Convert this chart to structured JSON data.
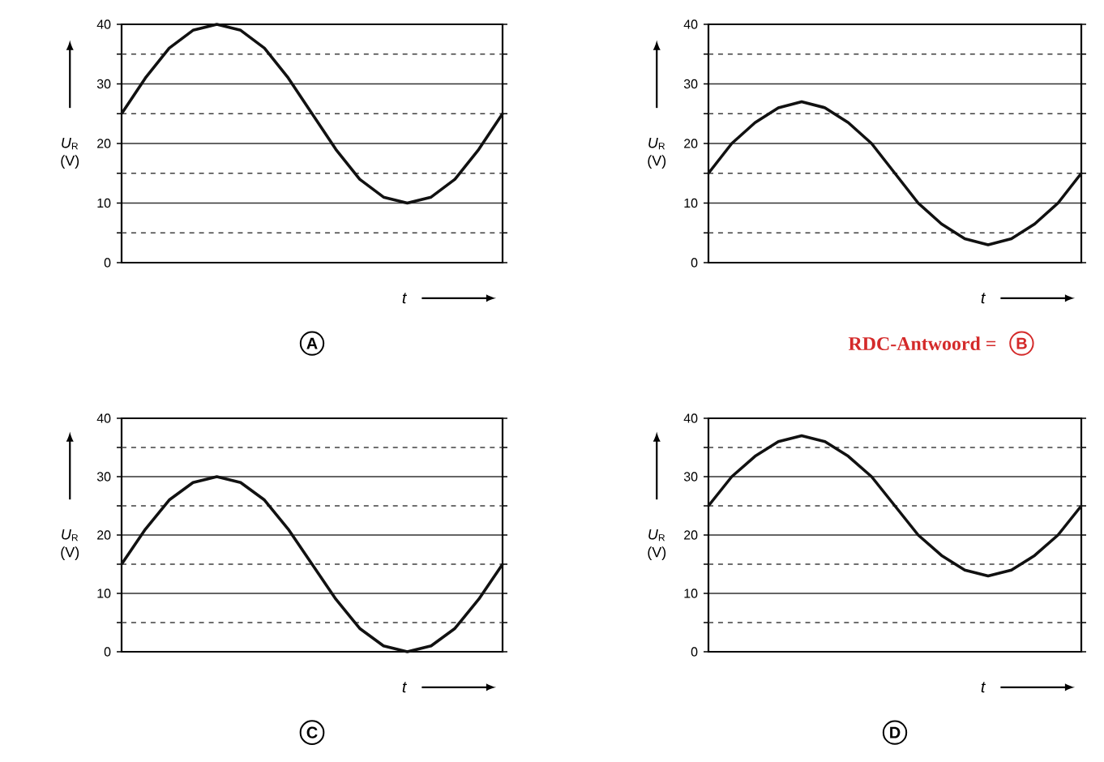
{
  "chart_data": [
    {
      "type": "line",
      "title": "A",
      "ylabel": "*U*$_{R}$ (V)",
      "xlabel": "t",
      "categories": [
        null,
        null,
        null,
        null,
        null,
        null,
        null,
        null,
        null,
        null,
        null,
        null,
        null,
        null,
        null,
        null,
        null
      ],
      "ylim": [
        0,
        40
      ],
      "yticks": [
        0,
        {
          "value": 5,
          "label": null
        },
        10,
        {
          "value": 15,
          "label": null
        },
        20,
        {
          "value": 25,
          "label": null
        },
        30,
        {
          "value": 35,
          "label": null
        },
        40
      ],
      "grid": "y",
      "marker": "none",
      "series": [
        {
          "color": "#111111",
          "values": [
            25,
            31,
            36,
            39,
            40,
            39,
            36,
            31,
            25,
            19,
            14,
            11,
            10,
            11,
            14,
            19,
            25
          ]
        }
      ]
    },
    {
      "type": "line",
      "title": "B",
      "ylabel": "*U*$_{R}$ (V)",
      "xlabel": "t",
      "annotations": [
        "RDC-Antwoord ="
      ],
      "categories": [
        null,
        null,
        null,
        null,
        null,
        null,
        null,
        null,
        null,
        null,
        null,
        null,
        null,
        null,
        null,
        null,
        null
      ],
      "ylim": [
        0,
        40
      ],
      "yticks": [
        0,
        {
          "value": 5,
          "label": null
        },
        10,
        {
          "value": 15,
          "label": null
        },
        20,
        {
          "value": 25,
          "label": null
        },
        30,
        {
          "value": 35,
          "label": null
        },
        40
      ],
      "grid": "y",
      "marker": "none",
      "series": [
        {
          "color": "#111111",
          "values": [
            15,
            20,
            23.5,
            26,
            27,
            26,
            23.5,
            20,
            15,
            10,
            6.5,
            4,
            3,
            4,
            6.5,
            10,
            15
          ]
        }
      ]
    },
    {
      "type": "line",
      "title": "C",
      "ylabel": "*U*$_{R}$ (V)",
      "xlabel": "t",
      "categories": [
        null,
        null,
        null,
        null,
        null,
        null,
        null,
        null,
        null,
        null,
        null,
        null,
        null,
        null,
        null,
        null,
        null
      ],
      "ylim": [
        0,
        40
      ],
      "yticks": [
        0,
        {
          "value": 5,
          "label": null
        },
        10,
        {
          "value": 15,
          "label": null
        },
        20,
        {
          "value": 25,
          "label": null
        },
        30,
        {
          "value": 35,
          "label": null
        },
        40
      ],
      "grid": "y",
      "marker": "none",
      "series": [
        {
          "color": "#111111",
          "values": [
            15,
            21,
            26,
            29,
            30,
            29,
            26,
            21,
            15,
            9,
            4,
            1,
            0,
            1,
            4,
            9,
            15
          ]
        }
      ]
    },
    {
      "type": "line",
      "title": "D",
      "ylabel": "*U*$_{R}$ (V)",
      "xlabel": "t",
      "categories": [
        null,
        null,
        null,
        null,
        null,
        null,
        null,
        null,
        null,
        null,
        null,
        null,
        null,
        null,
        null,
        null,
        null
      ],
      "ylim": [
        0,
        40
      ],
      "yticks": [
        0,
        {
          "value": 5,
          "label": null
        },
        10,
        {
          "value": 15,
          "label": null
        },
        20,
        {
          "value": 25,
          "label": null
        },
        30,
        {
          "value": 35,
          "label": null
        },
        40
      ],
      "grid": "y",
      "marker": "none",
      "series": [
        {
          "color": "#111111",
          "values": [
            25,
            30,
            33.5,
            36,
            37,
            36,
            33.5,
            30,
            25,
            20,
            16.5,
            14,
            13,
            14,
            16.5,
            20,
            25
          ]
        }
      ]
    }
  ]
}
